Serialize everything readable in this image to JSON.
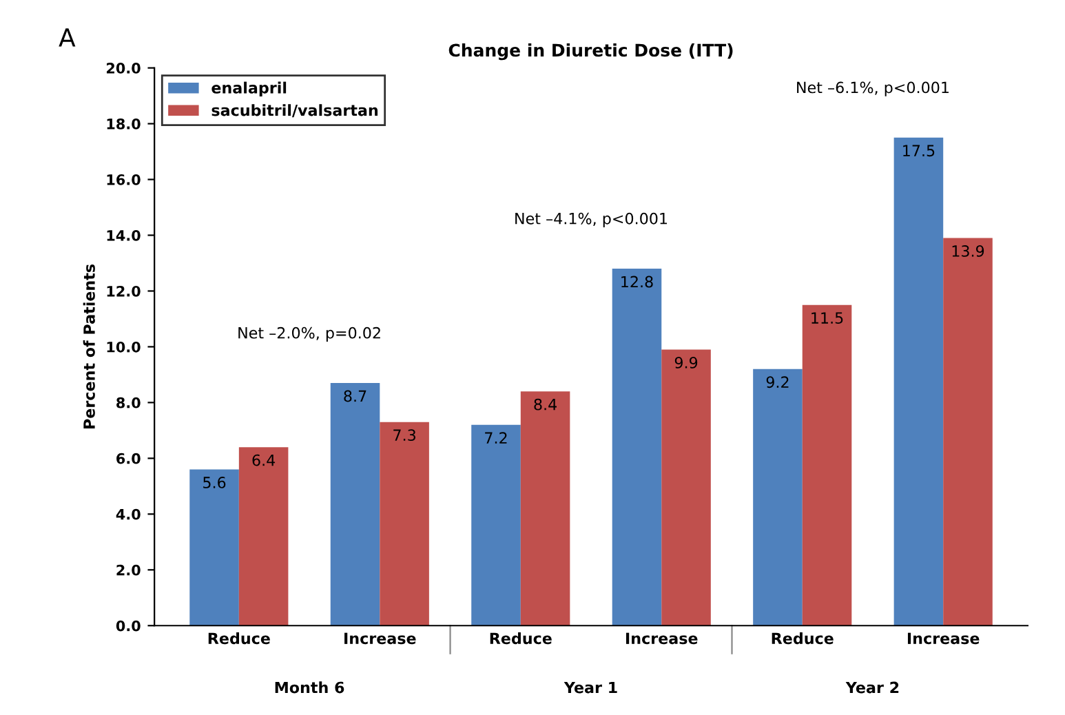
{
  "chart_data": {
    "type": "bar",
    "title": "Change in Diuretic Dose (ITT)",
    "ylabel": "Percent of Patients",
    "categories": [
      "Reduce",
      "Increase",
      "Reduce",
      "Increase",
      "Reduce",
      "Increase"
    ],
    "series": [
      {
        "name": "enalapril",
        "color": "#4f81bd",
        "values": [
          5.6,
          8.7,
          7.2,
          12.8,
          9.2,
          17.5
        ]
      },
      {
        "name": "sacubitril/valsartan",
        "color": "#c0504d",
        "values": [
          6.4,
          7.3,
          8.4,
          9.9,
          11.5,
          13.9
        ]
      }
    ],
    "ylim": [
      0,
      20
    ],
    "yticks": [
      {
        "value": 0,
        "label": "0.0"
      },
      {
        "value": 2,
        "label": "2.0"
      },
      {
        "value": 4,
        "label": "4.0"
      },
      {
        "value": 6,
        "label": "6.0"
      },
      {
        "value": 8,
        "label": "8.0"
      },
      {
        "value": 10,
        "label": "10.0"
      },
      {
        "value": 12,
        "label": "12.0"
      },
      {
        "value": 14,
        "label": "14.0"
      },
      {
        "value": 16,
        "label": "16.0"
      },
      {
        "value": 18,
        "label": "18.0"
      },
      {
        "value": 20,
        "label": "20.0"
      }
    ],
    "annotations": [
      "A",
      "Net –2.0%, p=0.02",
      "Net –4.1%, p<0.001",
      "Net –6.1%, p<0.001",
      "Month 6",
      "Year 1",
      "Year 2"
    ],
    "data_labels": true,
    "legend": "top left",
    "grid": false
  }
}
